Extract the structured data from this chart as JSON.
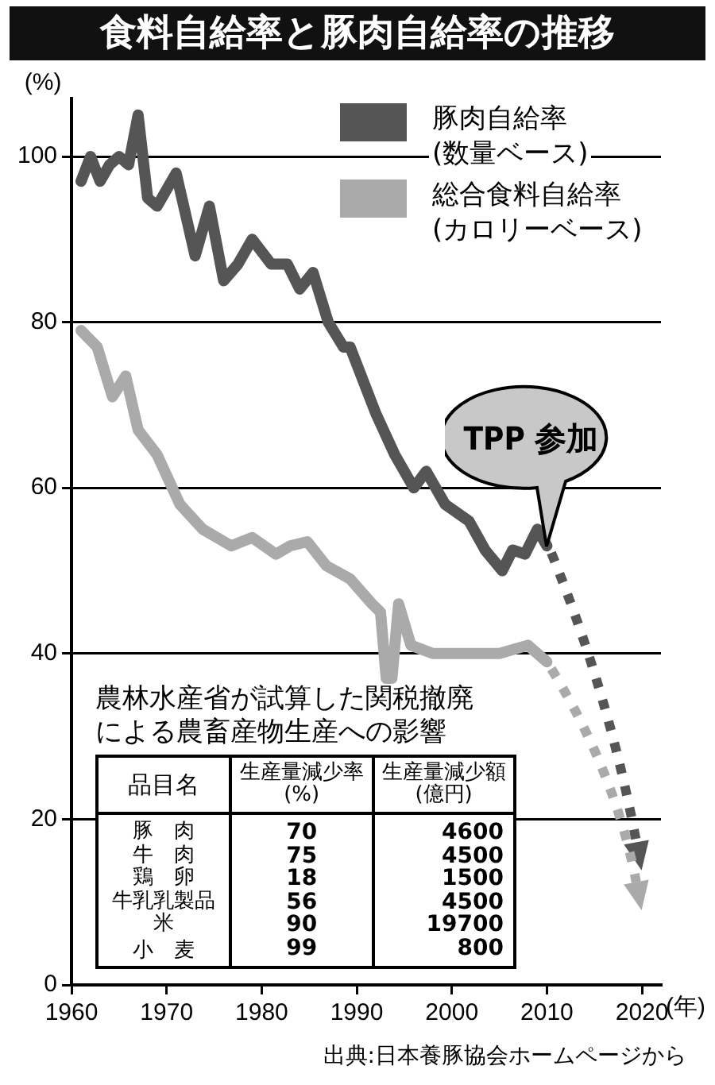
{
  "chart_data": [
    {
      "type": "line",
      "title": "食料自給率と豚肉自給率の推移",
      "xlabel": "(年)",
      "ylabel": "(%)",
      "xlim": [
        1960,
        2022
      ],
      "xticks": [
        1960,
        1970,
        1980,
        1990,
        2000,
        2010,
        2020
      ],
      "ylim": [
        0,
        107
      ],
      "yticks": [
        0,
        20,
        40,
        60,
        80,
        100
      ],
      "grid": "y",
      "legend": "top right",
      "marker": "none",
      "series": [
        {
          "name": "豚肉自給率\n(数量ベース)",
          "color": "#555555",
          "line_style": "solid",
          "x": [
            1961,
            1962,
            1963,
            1964,
            1965,
            1966,
            1967,
            1968,
            1969,
            1971,
            1973,
            1974.5,
            1976,
            1977.5,
            1979,
            1981,
            1982.7,
            1984,
            1985.4,
            1987,
            1988.6,
            1989.3,
            1992,
            1994,
            1996,
            1997.3,
            1999.3,
            2001.8,
            2003.5,
            2005.3,
            2006.4,
            2007.7,
            2009,
            2010
          ],
          "values": [
            97,
            100,
            97,
            99,
            100,
            99,
            105,
            95,
            94,
            98,
            88,
            94,
            85,
            87,
            90,
            87,
            87,
            84,
            86,
            80,
            77,
            77,
            69,
            64,
            60,
            62,
            58,
            56,
            52.5,
            50,
            52.5,
            52,
            55,
            53
          ]
        },
        {
          "name": "総合食料自給率\n(カロリーベース)",
          "color": "#aaaaaa",
          "line_style": "solid",
          "x": [
            1961,
            1962.7,
            1964.3,
            1965.7,
            1967,
            1969,
            1971.4,
            1973.8,
            1976.8,
            1979,
            1981.5,
            1983,
            1984.8,
            1986.8,
            1989.3,
            1991.6,
            1992.5,
            1993.1,
            1993.7,
            1994.4,
            1995.7,
            1998,
            2000,
            2005,
            2008,
            2010
          ],
          "values": [
            79,
            77,
            71,
            73.5,
            67,
            64,
            58,
            55,
            53,
            54,
            52,
            53,
            53.5,
            50.6,
            49,
            46,
            45,
            37,
            37,
            46,
            41,
            40,
            40,
            40,
            41,
            39
          ]
        }
      ],
      "annotations": [
        {
          "text": "TPP 参加",
          "x": 2010,
          "y": 53
        },
        "出典:日本養豚協会ホームページから"
      ]
    },
    {
      "type": "other",
      "title": "農林水産省が試算した関税撤廃による農畜産物生産への影響",
      "xlabel": "品目名",
      "categories": [
        "豚　肉",
        "牛　肉",
        "鶏　卵",
        "牛乳乳製品",
        "米",
        "小　麦"
      ],
      "data_labels": true,
      "series": [
        {
          "name": "生産量減少率\n(%)",
          "values": [
            70,
            75,
            18,
            56,
            90,
            99
          ]
        },
        {
          "name": "生産量減少額\n(億円)",
          "values": [
            4600,
            4500,
            1500,
            4500,
            19700,
            800
          ]
        }
      ]
    }
  ]
}
